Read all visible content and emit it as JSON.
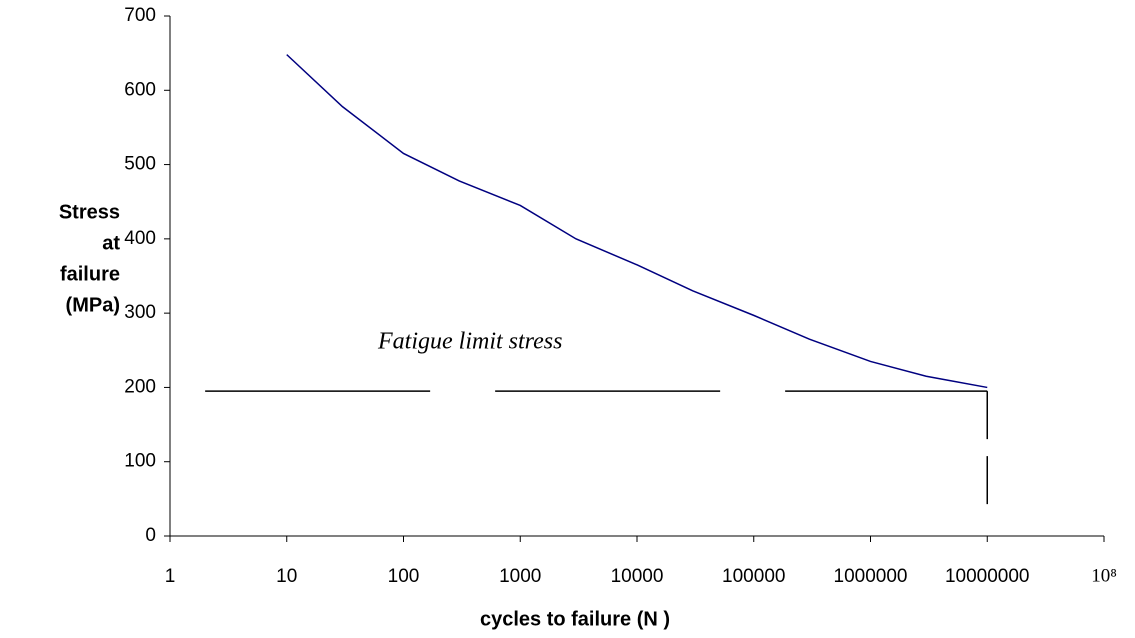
{
  "chart_data": {
    "type": "line",
    "x_label": "cycles to failure (N )",
    "y_label": [
      "Stress",
      "at",
      "failure",
      "(MPa)"
    ],
    "annotation": "Fatigue limit stress",
    "xscale": "log",
    "xlim": [
      1,
      100000000
    ],
    "xticks": [
      1,
      10,
      100,
      1000,
      10000,
      100000,
      1000000,
      10000000,
      {
        "value": 100000000,
        "label": "10⁸"
      }
    ],
    "ylim": [
      0,
      700
    ],
    "yticks": [
      0,
      100,
      200,
      300,
      400,
      500,
      600,
      700
    ],
    "series": [
      {
        "color": "#000080",
        "x": [
          10,
          30,
          100,
          300,
          1000,
          3000,
          10000,
          30000,
          100000,
          300000,
          1000000,
          3000000,
          10000000
        ],
        "values": [
          648,
          578,
          515,
          478,
          445,
          400,
          365,
          330,
          297,
          265,
          235,
          215,
          200
        ]
      }
    ],
    "limit_line": {
      "value": 195,
      "x": [
        2,
        10000000
      ],
      "color": "#000000"
    }
  }
}
